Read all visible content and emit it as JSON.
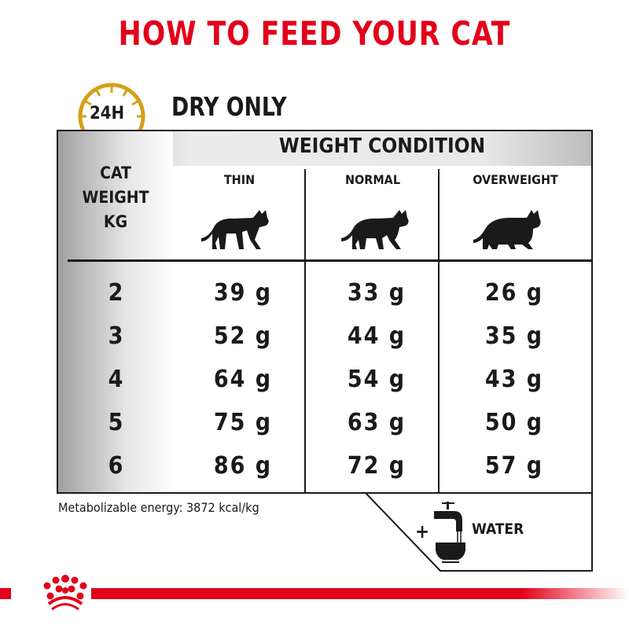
{
  "title": "HOW TO FEED YOUR CAT",
  "clock_label": "24H",
  "subtitle": "DRY ONLY",
  "table": {
    "group_header": "WEIGHT CONDITION",
    "row_header": [
      "CAT",
      "WEIGHT",
      "KG"
    ],
    "columns": [
      "THIN",
      "NORMAL",
      "OVERWEIGHT"
    ],
    "rows": [
      {
        "kg": "2",
        "values": [
          "39 g",
          "33 g",
          "26 g"
        ]
      },
      {
        "kg": "3",
        "values": [
          "52 g",
          "44 g",
          "35 g"
        ]
      },
      {
        "kg": "4",
        "values": [
          "64 g",
          "54 g",
          "43 g"
        ]
      },
      {
        "kg": "5",
        "values": [
          "75 g",
          "63 g",
          "50 g"
        ]
      },
      {
        "kg": "6",
        "values": [
          "86 g",
          "72 g",
          "57 g"
        ]
      }
    ]
  },
  "energy_note": "Metabolizable energy: 3872 kcal/kg",
  "water": {
    "plus": "+",
    "label": "WATER"
  },
  "colors": {
    "brand_red": "#e2001a",
    "clock_gold": "#d4a017",
    "text": "#1a1a1a"
  }
}
